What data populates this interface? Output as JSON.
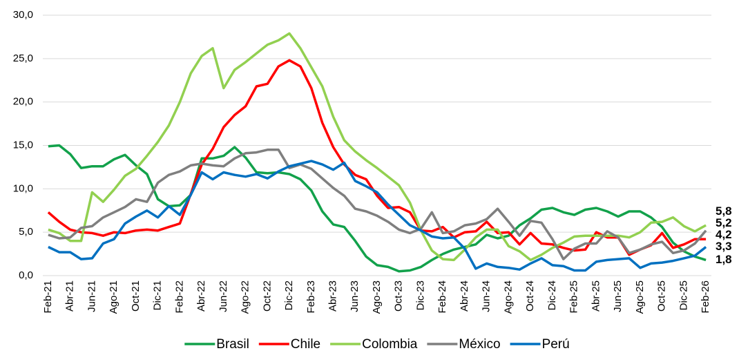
{
  "chart_data": {
    "type": "line",
    "categories": [
      "Feb-21",
      null,
      "Abr-21",
      null,
      "Jun-21",
      null,
      "Ago-21",
      null,
      "Oct-21",
      null,
      "Dic-21",
      null,
      "Feb-22",
      null,
      "Abr-22",
      null,
      "Jun-22",
      null,
      "Ago-22",
      null,
      "Oct-22",
      null,
      "Dic-22",
      null,
      "Feb-23",
      null,
      "Abr-23",
      null,
      "Jun-23",
      null,
      "Ago-23",
      null,
      "Oct-23",
      null,
      "Dic-23",
      null,
      "Feb-24",
      null,
      "Abr-24",
      null,
      "Jun-24",
      null,
      "Ago-24",
      null,
      "Oct-24",
      null,
      "Dic-24",
      null,
      "Feb-25",
      null,
      "Abr-25",
      null,
      "Jun-25",
      null,
      "Ago-25",
      null,
      "Oct-25",
      null,
      "Dic-25",
      null,
      "Feb-26"
    ],
    "series": [
      {
        "name": "Brasil",
        "color": "#12a14b",
        "values": [
          14.9,
          15.0,
          14.0,
          12.4,
          12.6,
          12.6,
          13.4,
          13.9,
          12.7,
          11.7,
          8.8,
          8.0,
          8.1,
          9.3,
          13.5,
          13.5,
          13.8,
          14.8,
          13.6,
          11.9,
          11.8,
          11.9,
          11.7,
          11.1,
          9.8,
          7.4,
          5.9,
          5.6,
          4.0,
          2.2,
          1.2,
          1.0,
          0.5,
          0.6,
          1.0,
          1.8,
          2.5,
          3.0,
          3.3,
          3.6,
          4.7,
          4.3,
          4.6,
          5.8,
          6.6,
          7.6,
          7.8,
          7.3,
          7.0,
          7.6,
          7.8,
          7.4,
          6.8,
          7.4,
          7.4,
          6.7,
          5.6,
          3.8,
          2.8,
          2.2,
          1.8
        ],
        "value_labels": [
          null,
          null,
          null,
          null,
          null,
          null,
          null,
          null,
          null,
          null,
          null,
          null,
          null,
          null,
          null,
          null,
          null,
          null,
          null,
          null,
          null,
          null,
          null,
          null,
          null,
          null,
          null,
          null,
          null,
          null,
          null,
          null,
          null,
          null,
          null,
          null,
          null,
          null,
          null,
          null,
          null,
          null,
          null,
          null,
          null,
          null,
          null,
          null,
          null,
          null,
          null,
          null,
          null,
          null,
          null,
          null,
          null,
          null,
          null,
          null,
          "1,8"
        ]
      },
      {
        "name": "Chile",
        "color": "#ff0000",
        "values": [
          7.3,
          6.2,
          5.3,
          5.0,
          4.9,
          4.6,
          5.0,
          4.9,
          5.2,
          5.3,
          5.2,
          5.6,
          6.0,
          9.4,
          12.8,
          14.6,
          17.1,
          18.5,
          19.5,
          21.8,
          22.1,
          24.1,
          24.8,
          24.1,
          21.6,
          17.6,
          14.8,
          12.8,
          11.6,
          11.1,
          9.2,
          7.8,
          7.9,
          7.3,
          5.2,
          5.1,
          5.6,
          4.4,
          5.0,
          5.1,
          6.2,
          4.9,
          5.0,
          3.6,
          4.9,
          3.7,
          3.6,
          3.2,
          2.9,
          3.0,
          5.0,
          4.4,
          4.4,
          2.4,
          3.0,
          3.5,
          4.9,
          3.2,
          3.6,
          4.2,
          4.2
        ],
        "value_labels": [
          null,
          null,
          null,
          null,
          null,
          null,
          null,
          null,
          null,
          null,
          null,
          null,
          null,
          null,
          null,
          null,
          null,
          null,
          null,
          null,
          null,
          null,
          null,
          null,
          null,
          null,
          null,
          null,
          null,
          null,
          null,
          null,
          null,
          null,
          null,
          null,
          null,
          null,
          null,
          null,
          null,
          null,
          null,
          null,
          null,
          null,
          null,
          null,
          null,
          null,
          null,
          null,
          null,
          null,
          null,
          null,
          null,
          null,
          null,
          null,
          "4,2"
        ]
      },
      {
        "name": "Colombia",
        "color": "#92d050",
        "values": [
          5.3,
          4.9,
          4.0,
          4.0,
          9.6,
          8.5,
          9.9,
          11.5,
          12.3,
          13.8,
          15.4,
          17.3,
          20.0,
          23.3,
          25.3,
          26.2,
          21.6,
          23.7,
          24.6,
          25.6,
          26.6,
          27.1,
          27.9,
          26.2,
          24.0,
          21.8,
          18.3,
          15.6,
          14.3,
          13.3,
          12.4,
          11.4,
          10.4,
          8.4,
          5.2,
          2.9,
          1.9,
          1.8,
          3.0,
          4.4,
          5.3,
          5.3,
          3.4,
          2.8,
          1.8,
          2.4,
          3.2,
          3.8,
          4.5,
          4.6,
          4.6,
          4.6,
          4.6,
          4.4,
          5.0,
          6.1,
          6.2,
          6.7,
          5.7,
          5.1,
          5.8
        ],
        "value_labels": [
          null,
          null,
          null,
          null,
          null,
          null,
          null,
          null,
          null,
          null,
          null,
          null,
          null,
          null,
          null,
          null,
          null,
          null,
          null,
          null,
          null,
          null,
          null,
          null,
          null,
          null,
          null,
          null,
          null,
          null,
          null,
          null,
          null,
          null,
          null,
          null,
          null,
          null,
          null,
          null,
          null,
          null,
          null,
          null,
          null,
          null,
          null,
          null,
          null,
          null,
          null,
          null,
          null,
          null,
          null,
          null,
          null,
          null,
          null,
          null,
          "5,8"
        ]
      },
      {
        "name": "México",
        "color": "#7f7f7f",
        "values": [
          4.7,
          4.3,
          4.4,
          5.5,
          5.7,
          6.7,
          7.3,
          7.9,
          8.8,
          8.5,
          10.7,
          11.6,
          12.0,
          12.7,
          12.9,
          12.7,
          12.6,
          13.5,
          14.1,
          14.2,
          14.5,
          14.5,
          12.4,
          12.8,
          12.3,
          11.2,
          10.1,
          9.2,
          7.7,
          7.4,
          6.9,
          6.2,
          5.3,
          4.9,
          5.4,
          7.3,
          4.9,
          5.1,
          5.8,
          6.0,
          6.5,
          7.7,
          6.2,
          4.6,
          6.3,
          6.1,
          4.2,
          1.9,
          3.1,
          3.7,
          3.7,
          5.1,
          4.4,
          2.6,
          3.0,
          3.6,
          3.9,
          2.6,
          2.9,
          3.7,
          5.2
        ],
        "value_labels": [
          null,
          null,
          null,
          null,
          null,
          null,
          null,
          null,
          null,
          null,
          null,
          null,
          null,
          null,
          null,
          null,
          null,
          null,
          null,
          null,
          null,
          null,
          null,
          null,
          null,
          null,
          null,
          null,
          null,
          null,
          null,
          null,
          null,
          null,
          null,
          null,
          null,
          null,
          null,
          null,
          null,
          null,
          null,
          null,
          null,
          null,
          null,
          null,
          null,
          null,
          null,
          null,
          null,
          null,
          null,
          null,
          null,
          null,
          null,
          null,
          "5,2"
        ]
      },
      {
        "name": "Perú",
        "color": "#0070c0",
        "values": [
          3.3,
          2.7,
          2.7,
          1.9,
          2.0,
          3.7,
          4.2,
          6.0,
          6.8,
          7.5,
          6.7,
          8.0,
          7.0,
          9.3,
          11.9,
          11.1,
          11.9,
          11.6,
          11.4,
          11.7,
          11.2,
          12.0,
          12.6,
          12.9,
          13.2,
          12.8,
          12.2,
          13.0,
          10.9,
          10.3,
          9.6,
          8.2,
          7.0,
          5.8,
          5.2,
          4.5,
          4.3,
          4.4,
          3.1,
          0.8,
          1.4,
          1.0,
          0.9,
          0.7,
          1.4,
          2.0,
          1.2,
          1.1,
          0.6,
          0.6,
          1.6,
          1.8,
          1.9,
          2.0,
          0.9,
          1.4,
          1.5,
          1.7,
          2.0,
          2.3,
          3.3
        ],
        "value_labels": [
          null,
          null,
          null,
          null,
          null,
          null,
          null,
          null,
          null,
          null,
          null,
          null,
          null,
          null,
          null,
          null,
          null,
          null,
          null,
          null,
          null,
          null,
          null,
          null,
          null,
          null,
          null,
          null,
          null,
          null,
          null,
          null,
          null,
          null,
          null,
          null,
          null,
          null,
          null,
          null,
          null,
          null,
          null,
          null,
          null,
          null,
          null,
          null,
          null,
          null,
          null,
          null,
          null,
          null,
          null,
          null,
          null,
          null,
          null,
          null,
          "3,3"
        ]
      }
    ],
    "ylim": [
      0,
      30
    ],
    "yticks": [
      {
        "value": 0,
        "label": "0,0"
      },
      {
        "value": 5,
        "label": "5,0"
      },
      {
        "value": 10,
        "label": "10,0"
      },
      {
        "value": 15,
        "label": "15,0"
      },
      {
        "value": 20,
        "label": "20,0"
      },
      {
        "value": 25,
        "label": "25,0"
      },
      {
        "value": 30,
        "label": "30,0"
      }
    ],
    "grid": true,
    "legend": "bottom"
  }
}
